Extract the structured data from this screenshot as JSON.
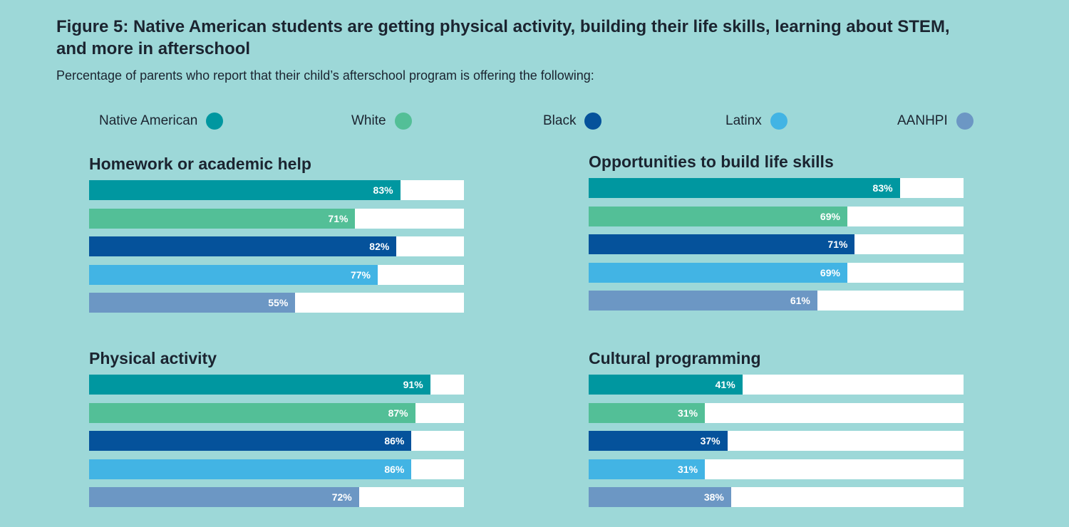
{
  "header": {
    "title": "Figure 5: Native American students are getting physical activity, building their life skills, learning about STEM, and more in afterschool",
    "subtitle": "Percentage of parents who report that their child’s afterschool program is offering the following:"
  },
  "legend": [
    {
      "name": "Native American",
      "color": "#0097a0"
    },
    {
      "name": "White",
      "color": "#53bf97"
    },
    {
      "name": "Black",
      "color": "#05529b"
    },
    {
      "name": "Latinx",
      "color": "#42b4e4"
    },
    {
      "name": "AANHPI",
      "color": "#6c97c4"
    }
  ],
  "chart_data": [
    {
      "type": "bar",
      "title": "Homework or academic help",
      "categories": [
        "Native American",
        "White",
        "Black",
        "Latinx",
        "AANHPI"
      ],
      "values": [
        83,
        71,
        82,
        77,
        55
      ],
      "labels": [
        "83%",
        "71%",
        "82%",
        "77%",
        "55%"
      ],
      "ylim": [
        0,
        100
      ]
    },
    {
      "type": "bar",
      "title": "Opportunities to build life skills",
      "categories": [
        "Native American",
        "White",
        "Black",
        "Latinx",
        "AANHPI"
      ],
      "values": [
        83,
        69,
        71,
        69,
        61
      ],
      "labels": [
        "83%",
        "69%",
        "71%",
        "69%",
        "61%"
      ],
      "ylim": [
        0,
        100
      ]
    },
    {
      "type": "bar",
      "title": "Physical activity",
      "categories": [
        "Native American",
        "White",
        "Black",
        "Latinx",
        "AANHPI"
      ],
      "values": [
        91,
        87,
        86,
        86,
        72
      ],
      "labels": [
        "91%",
        "87%",
        "86%",
        "86%",
        "72%"
      ],
      "ylim": [
        0,
        100
      ]
    },
    {
      "type": "bar",
      "title": "Cultural programming",
      "categories": [
        "Native American",
        "White",
        "Black",
        "Latinx",
        "AANHPI"
      ],
      "values": [
        41,
        31,
        37,
        31,
        38
      ],
      "labels": [
        "41%",
        "31%",
        "37%",
        "31%",
        "38%"
      ],
      "ylim": [
        0,
        100
      ]
    }
  ]
}
